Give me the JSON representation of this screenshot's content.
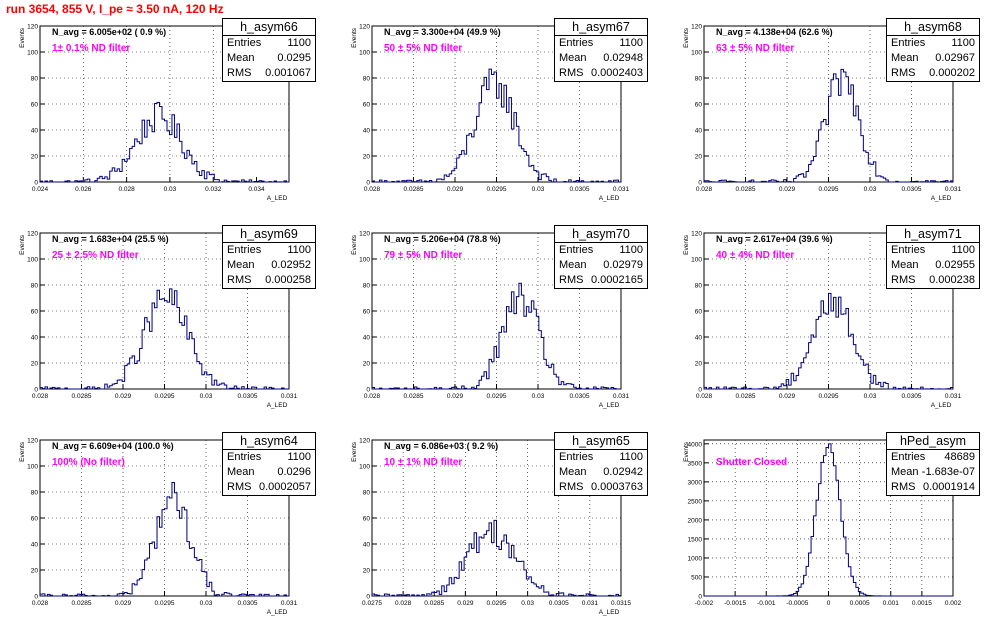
{
  "page": {
    "run_title": "run 3654,   855 V, I_pe ≈ 3.50 nA, 120 Hz"
  },
  "colors": {
    "title": "#ff0000",
    "filter_label": "#ff00ff",
    "histogram_line": "#000080",
    "grid": "#000000"
  },
  "chart_data": [
    {
      "type": "histogram",
      "name": "h_asym66",
      "stats": {
        "entries": "1100",
        "mean": "0.0295",
        "rms": "0.001067"
      },
      "navg_label": "N_avg = 6.005e+02 ( 0.9 %)",
      "filter_label": "1± 0.1% ND filter",
      "ylabel": "Events",
      "xlabel": "A_LED",
      "xlim": [
        0.024,
        0.0355
      ],
      "ylim": [
        0,
        120
      ],
      "xticks": [
        "0.024",
        "0.026",
        "0.028",
        "0.03",
        "0.032",
        "0.034"
      ],
      "xtick_values": [
        0.024,
        0.026,
        0.028,
        0.03,
        0.032,
        0.034
      ],
      "yticks": [
        0,
        20,
        40,
        60,
        80,
        100,
        120
      ],
      "grid": true,
      "peak_x": 0.0295,
      "sigma": 0.00107,
      "peak_y": 50
    },
    {
      "type": "histogram",
      "name": "h_asym67",
      "stats": {
        "entries": "1100",
        "mean": "0.02948",
        "rms": "0.0002403"
      },
      "navg_label": "N_avg = 3.300e+04 (49.9 %)",
      "filter_label": "50 ± 5% ND filter",
      "ylabel": "Events",
      "xlabel": "A_LED",
      "xlim": [
        0.028,
        0.031
      ],
      "ylim": [
        0,
        120
      ],
      "xticks": [
        "0.028",
        "0.0285",
        "0.029",
        "0.0295",
        "0.03",
        "0.0305",
        "0.031"
      ],
      "xtick_values": [
        0.028,
        0.0285,
        0.029,
        0.0295,
        0.03,
        0.0305,
        0.031
      ],
      "yticks": [
        0,
        20,
        40,
        60,
        80,
        100,
        120
      ],
      "grid": true,
      "peak_x": 0.02948,
      "sigma": 0.00024,
      "peak_y": 76
    },
    {
      "type": "histogram",
      "name": "h_asym68",
      "stats": {
        "entries": "1100",
        "mean": "0.02967",
        "rms": "0.000202"
      },
      "navg_label": "N_avg = 4.138e+04 (62.6 %)",
      "filter_label": "63 ± 5% ND filter",
      "ylabel": "Events",
      "xlabel": "A_LED",
      "xlim": [
        0.028,
        0.031
      ],
      "ylim": [
        0,
        120
      ],
      "xticks": [
        "0.028",
        "0.0285",
        "0.029",
        "0.0295",
        "0.03",
        "0.0305",
        "0.031"
      ],
      "xtick_values": [
        0.028,
        0.0285,
        0.029,
        0.0295,
        0.03,
        0.0305,
        0.031
      ],
      "yticks": [
        0,
        20,
        40,
        60,
        80,
        100,
        120
      ],
      "grid": true,
      "peak_x": 0.02967,
      "sigma": 0.0002,
      "peak_y": 80
    },
    {
      "type": "histogram",
      "name": "h_asym69",
      "stats": {
        "entries": "1100",
        "mean": "0.02952",
        "rms": "0.000258"
      },
      "navg_label": "N_avg = 1.683e+04 (25.5 %)",
      "filter_label": "25 ± 2.5% ND filter",
      "ylabel": "Events",
      "xlabel": "A_LED",
      "xlim": [
        0.028,
        0.031
      ],
      "ylim": [
        0,
        120
      ],
      "xticks": [
        "0.028",
        "0.0285",
        "0.029",
        "0.0295",
        "0.03",
        "0.0305",
        "0.031"
      ],
      "xtick_values": [
        0.028,
        0.0285,
        0.029,
        0.0295,
        0.03,
        0.0305,
        0.031
      ],
      "yticks": [
        0,
        20,
        40,
        60,
        80,
        100,
        120
      ],
      "grid": true,
      "peak_x": 0.02952,
      "sigma": 0.00026,
      "peak_y": 70
    },
    {
      "type": "histogram",
      "name": "h_asym70",
      "stats": {
        "entries": "1100",
        "mean": "0.02979",
        "rms": "0.0002165"
      },
      "navg_label": "N_avg = 5.206e+04 (78.8 %)",
      "filter_label": "79 ± 5% ND filter",
      "ylabel": "Events",
      "xlabel": "A_LED",
      "xlim": [
        0.028,
        0.031
      ],
      "ylim": [
        0,
        120
      ],
      "xticks": [
        "0.028",
        "0.0285",
        "0.029",
        "0.0295",
        "0.03",
        "0.0305",
        "0.031"
      ],
      "xtick_values": [
        0.028,
        0.0285,
        0.029,
        0.0295,
        0.03,
        0.0305,
        0.031
      ],
      "yticks": [
        0,
        20,
        40,
        60,
        80,
        100,
        120
      ],
      "grid": true,
      "peak_x": 0.02979,
      "sigma": 0.00022,
      "peak_y": 70
    },
    {
      "type": "histogram",
      "name": "h_asym71",
      "stats": {
        "entries": "1100",
        "mean": "0.02955",
        "rms": "0.000238"
      },
      "navg_label": "N_avg = 2.617e+04 (39.6 %)",
      "filter_label": "40 ± 4% ND filter",
      "ylabel": "Events",
      "xlabel": "A_LED",
      "xlim": [
        0.028,
        0.031
      ],
      "ylim": [
        0,
        120
      ],
      "xticks": [
        "0.028",
        "0.0285",
        "0.029",
        "0.0295",
        "0.03",
        "0.0305",
        "0.031"
      ],
      "xtick_values": [
        0.028,
        0.0285,
        0.029,
        0.0295,
        0.03,
        0.0305,
        0.031
      ],
      "yticks": [
        0,
        20,
        40,
        60,
        80,
        100,
        120
      ],
      "grid": true,
      "peak_x": 0.02955,
      "sigma": 0.00024,
      "peak_y": 68
    },
    {
      "type": "histogram",
      "name": "h_asym64",
      "stats": {
        "entries": "1100",
        "mean": "0.0296",
        "rms": "0.0002057"
      },
      "navg_label": "N_avg = 6.609e+04 (100.0 %)",
      "filter_label": "100% (No filter)",
      "ylabel": "Events",
      "xlabel": "A_LED",
      "xlim": [
        0.028,
        0.031
      ],
      "ylim": [
        0,
        120
      ],
      "xticks": [
        "0.028",
        "0.0285",
        "0.029",
        "0.0295",
        "0.03",
        "0.0305",
        "0.031"
      ],
      "xtick_values": [
        0.028,
        0.0285,
        0.029,
        0.0295,
        0.03,
        0.0305,
        0.031
      ],
      "yticks": [
        0,
        20,
        40,
        60,
        80,
        100,
        120
      ],
      "grid": true,
      "peak_x": 0.0296,
      "sigma": 0.00021,
      "peak_y": 76
    },
    {
      "type": "histogram",
      "name": "h_asym65",
      "stats": {
        "entries": "1100",
        "mean": "0.02942",
        "rms": "0.0003763"
      },
      "navg_label": "N_avg = 6.086e+03 ( 9.2 %)",
      "filter_label": "10 ± 1% ND filter",
      "ylabel": "Events",
      "xlabel": "A_LED",
      "xlim": [
        0.0275,
        0.0315
      ],
      "ylim": [
        0,
        120
      ],
      "xticks": [
        "0.0275",
        "0.028",
        "0.0285",
        "0.029",
        "0.0295",
        "0.03",
        "0.0305",
        "0.031",
        "0.0315"
      ],
      "xtick_values": [
        0.0275,
        0.028,
        0.0285,
        0.029,
        0.0295,
        0.03,
        0.0305,
        0.031,
        0.0315
      ],
      "yticks": [
        0,
        20,
        40,
        60,
        80,
        100,
        120
      ],
      "grid": true,
      "peak_x": 0.02942,
      "sigma": 0.00038,
      "peak_y": 50
    },
    {
      "type": "histogram",
      "name": "hPed_asym",
      "stats": {
        "entries": "48689",
        "mean": "-1.683e-07",
        "rms": "0.0001914"
      },
      "navg_label": "",
      "filter_label": "Shutter Closed",
      "ylabel": "Events",
      "xlabel": "",
      "xlim": [
        -0.002,
        0.002
      ],
      "ylim": [
        0,
        4100
      ],
      "xticks": [
        "-0.002",
        "-0.0015",
        "-0.001",
        "-0.0005",
        "0",
        "0.0005",
        "0.001",
        "0.0015",
        "0.002"
      ],
      "xtick_values": [
        -0.002,
        -0.0015,
        -0.001,
        -0.0005,
        0,
        0.0005,
        0.001,
        0.0015,
        0.002
      ],
      "yticks": [
        0,
        500,
        1000,
        1500,
        2000,
        2500,
        3000,
        3500,
        4000
      ],
      "grid": true,
      "peak_x": 0,
      "sigma": 0.00019,
      "peak_y": 3980
    }
  ]
}
